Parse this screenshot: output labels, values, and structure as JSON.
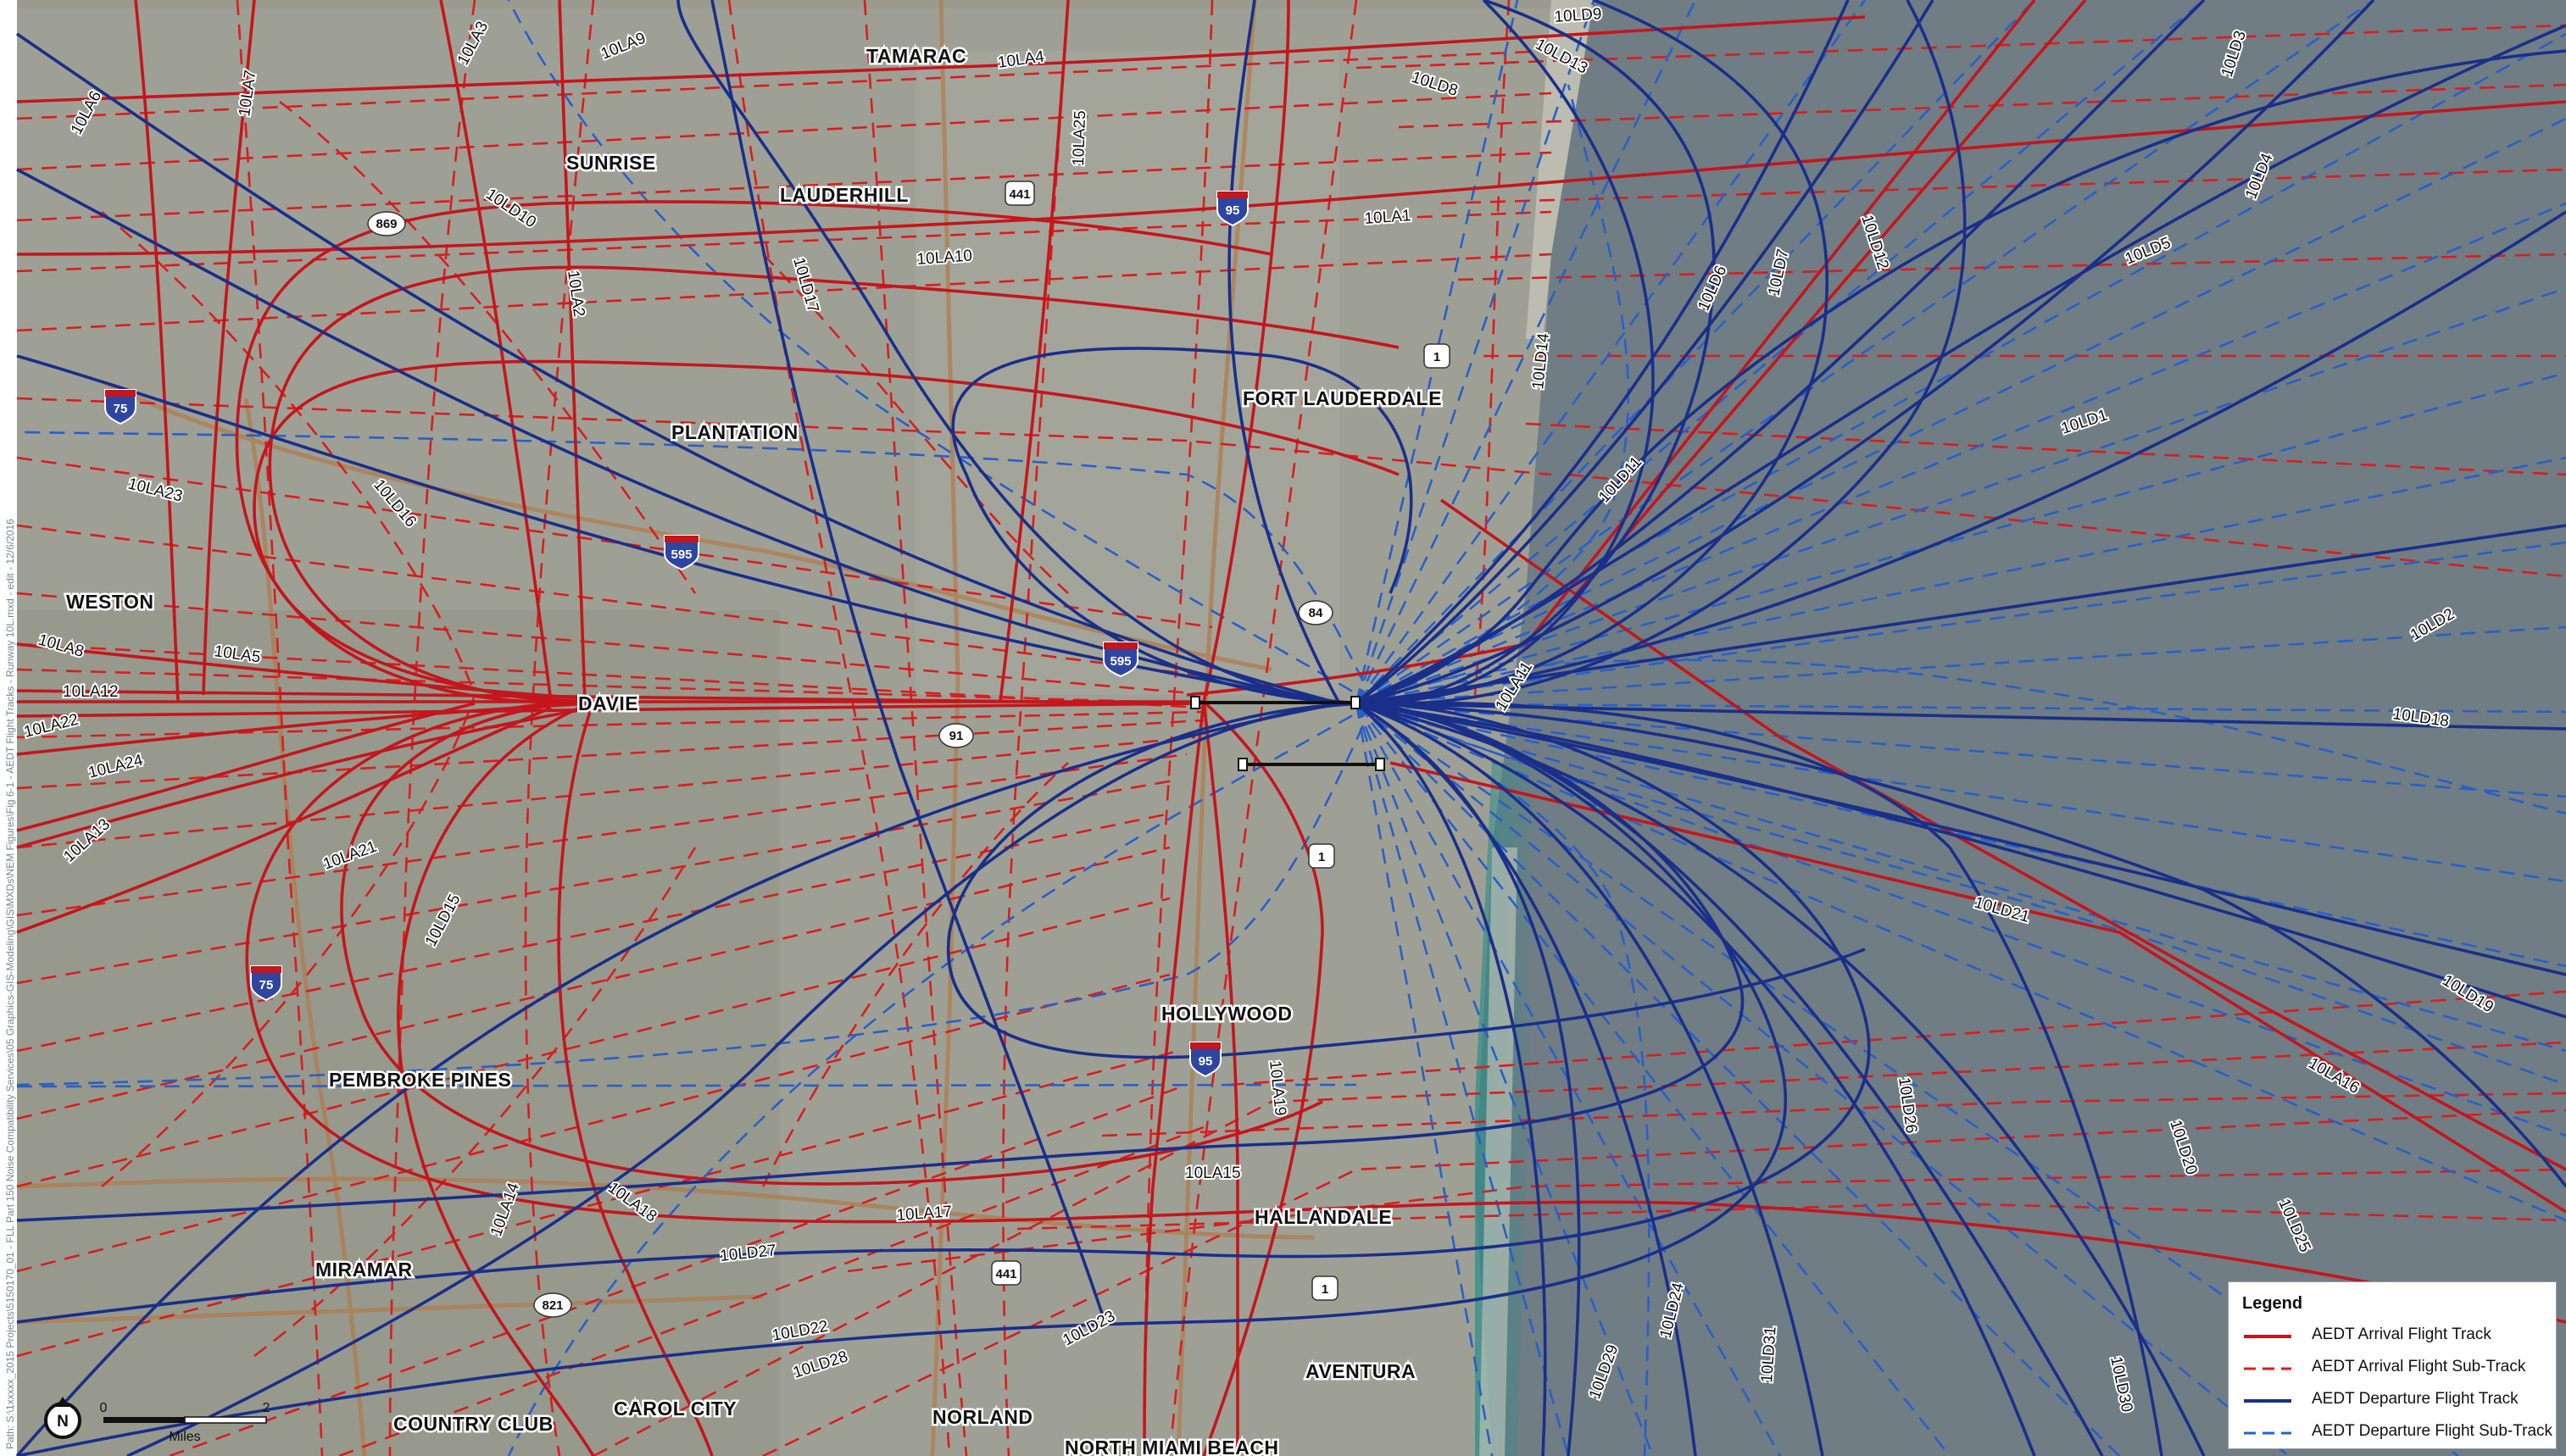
{
  "map": {
    "cities": [
      {
        "label": "TAMARAC"
      },
      {
        "label": "SUNRISE"
      },
      {
        "label": "LAUDERHILL"
      },
      {
        "label": "PLANTATION"
      },
      {
        "label": "FORT LAUDERDALE"
      },
      {
        "label": "WESTON"
      },
      {
        "label": "DAVIE"
      },
      {
        "label": "HOLLYWOOD"
      },
      {
        "label": "PEMBROKE PINES"
      },
      {
        "label": "HALLANDALE"
      },
      {
        "label": "MIRAMAR"
      },
      {
        "label": "AVENTURA"
      },
      {
        "label": "COUNTRY CLUB"
      },
      {
        "label": "CAROL CITY"
      },
      {
        "label": "NORLAND"
      },
      {
        "label": "NORTH MIAMI BEACH"
      }
    ],
    "arrival_track_labels": [
      "10LA3",
      "10LA9",
      "10LA4",
      "10LA7",
      "10LA6",
      "10LA25",
      "10LA1",
      "10LA10",
      "10LA2",
      "10LA23",
      "10LA8",
      "10LA5",
      "10LA12",
      "10LA22",
      "10LA24",
      "10LA13",
      "10LA21",
      "10LA11",
      "10LA19",
      "10LA15",
      "10LA17",
      "10LA14",
      "10LA18",
      "10LA16"
    ],
    "departure_track_labels": [
      "10LD9",
      "10LD13",
      "10LD8",
      "10LD3",
      "10LD4",
      "10LD10",
      "10LD12",
      "10LD6",
      "10LD7",
      "10LD5",
      "10LD17",
      "10LD14",
      "10LD1",
      "10LD16",
      "10LD11",
      "10LD2",
      "10LD18",
      "10LD15",
      "10LD21",
      "10LD19",
      "10LD26",
      "10LD20",
      "10LD25",
      "10LD24",
      "10LD27",
      "10LD22",
      "10LD28",
      "10LD23",
      "10LD31",
      "10LD29",
      "10LD30"
    ],
    "interstate_shields": [
      "75",
      "595",
      "595",
      "95",
      "95",
      "75"
    ],
    "route_shields": [
      "869",
      "441",
      "1",
      "84",
      "91",
      "1",
      "441",
      "821",
      "1"
    ],
    "sidebar_text": "Path: S:\\1xxxxx_2015 Projects\\5150170_01 - FLL Part 150 Noise Compatibility Services\\05 Graphics-GIS-Modeling\\GIS\\MXDs\\NEM Figures\\Fig 6-1 - AEDT Flight Tracks - Runway 10L.mxd - edit - 12/6/2016",
    "colors": {
      "arrival": "#d81e1e",
      "departure": "#1a2f8a",
      "departure_sub": "#2860c8",
      "ocean": "#707d84",
      "land": "#9a9a8e"
    }
  },
  "scale_bar": {
    "zero": "0",
    "max": "2",
    "unit": "Miles"
  },
  "north_arrow": {
    "label": "N"
  },
  "legend": {
    "title": "Legend",
    "items": [
      {
        "label": "AEDT Arrival Flight Track"
      },
      {
        "label": "AEDT Arrival Flight Sub-Track"
      },
      {
        "label": "AEDT Departure Flight Track"
      },
      {
        "label": "AEDT Departure Flight Sub-Track"
      }
    ]
  }
}
